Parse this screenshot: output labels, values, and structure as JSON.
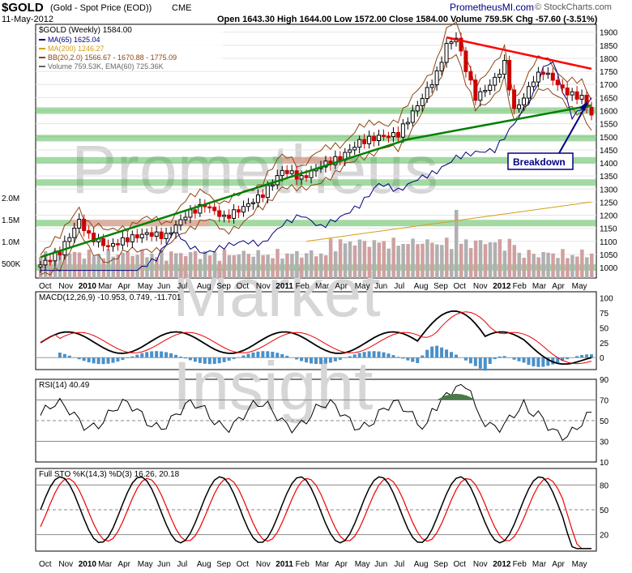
{
  "header": {
    "symbol": "$GOLD",
    "name": "(Gold - Spot Price (EOD))",
    "exchange": "CME",
    "date": "11-May-2012",
    "source": "PrometheusMI.com",
    "copyright": "© StockCharts.com",
    "ohlc_text": "Open 1643.30  High 1644.00  Low 1572.00  Close 1584.00  Volume 759.5K  Chg -57.60 (-3.51%)"
  },
  "watermark": [
    "Prometheus",
    "Market",
    "Insight"
  ],
  "annotation": "Breakdown",
  "colors": {
    "up": "#000000",
    "down": "#cc0000",
    "ma65": "#000080",
    "ma200": "#d4a017",
    "bb": "#8b4513",
    "volume": "#d0a0a0",
    "trend_green": "#008000",
    "trend_red": "#ff0000",
    "zone": "#33aa33",
    "macd_hist": "#4a90c8",
    "rsi_fill": "#4a7a4a"
  },
  "chart_data": [
    {
      "type": "candlestick",
      "title": "$GOLD (Weekly) 1584.00",
      "legend": [
        "MA(65) 1625.04",
        "MA(200) 1246.27",
        "BB(20,2.0) 1566.67 - 1670.88 - 1775.09",
        "Volume 759.53K, EMA(60) 725.36K"
      ],
      "ylim": [
        960,
        1930
      ],
      "y_ticks": [
        1000,
        1050,
        1100,
        1150,
        1200,
        1250,
        1300,
        1350,
        1400,
        1450,
        1500,
        1550,
        1600,
        1650,
        1700,
        1750,
        1800,
        1850,
        1900
      ],
      "volume_ticks": [
        "500K",
        "1.0M",
        "1.5M",
        "2.0M"
      ],
      "x_ticks": [
        "Oct",
        "Nov",
        "2010",
        "Mar",
        "Apr",
        "May",
        "Jun",
        "Jul",
        "Aug",
        "Sep",
        "Oct",
        "Nov",
        "2011",
        "Feb",
        "Mar",
        "Apr",
        "May",
        "Jun",
        "Jul",
        "Aug",
        "Sep",
        "Oct",
        "Nov",
        "2012",
        "Feb",
        "Mar",
        "Apr",
        "May"
      ],
      "close_path": [
        [
          0,
          1010
        ],
        [
          4,
          1060
        ],
        [
          8,
          1180
        ],
        [
          10,
          1120
        ],
        [
          14,
          1080
        ],
        [
          18,
          1110
        ],
        [
          22,
          1130
        ],
        [
          26,
          1120
        ],
        [
          30,
          1200
        ],
        [
          34,
          1240
        ],
        [
          38,
          1190
        ],
        [
          42,
          1230
        ],
        [
          46,
          1280
        ],
        [
          50,
          1370
        ],
        [
          52,
          1360
        ],
        [
          54,
          1340
        ],
        [
          58,
          1390
        ],
        [
          62,
          1420
        ],
        [
          66,
          1480
        ],
        [
          70,
          1500
        ],
        [
          74,
          1510
        ],
        [
          78,
          1620
        ],
        [
          82,
          1740
        ],
        [
          84,
          1850
        ],
        [
          86,
          1880
        ],
        [
          88,
          1760
        ],
        [
          90,
          1650
        ],
        [
          92,
          1680
        ],
        [
          94,
          1720
        ],
        [
          96,
          1780
        ],
        [
          98,
          1600
        ],
        [
          100,
          1650
        ],
        [
          102,
          1720
        ],
        [
          104,
          1750
        ],
        [
          106,
          1720
        ],
        [
          108,
          1680
        ],
        [
          110,
          1660
        ],
        [
          112,
          1650
        ],
        [
          114,
          1584
        ]
      ],
      "resistance_zones": [
        1000,
        1170,
        1325,
        1410,
        1495,
        1600
      ],
      "trendlines": {
        "green_support_1": [
          [
            0,
            1040
          ],
          [
            76,
            1490
          ]
        ],
        "green_support_2": [
          [
            76,
            1490
          ],
          [
            114,
            1620
          ]
        ],
        "red_resistance": [
          [
            84,
            1880
          ],
          [
            114,
            1760
          ]
        ]
      },
      "volume_spike": "Aug 2011"
    },
    {
      "type": "line",
      "title": "MACD(12,26,9) -10.953, 0.749, -11.701",
      "macd_value": -10.953,
      "signal_value": 0.749,
      "hist_value": -11.701,
      "ylim": [
        -20,
        110
      ],
      "y_ticks": [
        0,
        25,
        50,
        75,
        100
      ]
    },
    {
      "type": "line",
      "title": "RSI(14) 40.49",
      "value": 40.49,
      "ylim": [
        10,
        90
      ],
      "y_ticks": [
        10,
        30,
        50,
        70,
        90
      ]
    },
    {
      "type": "line",
      "title": "Full STO %K(14,3) %D(3) 16.26, 20.18",
      "k_value": 16.26,
      "d_value": 20.18,
      "ylim": [
        0,
        100
      ],
      "y_ticks": [
        20,
        50,
        80
      ]
    }
  ]
}
